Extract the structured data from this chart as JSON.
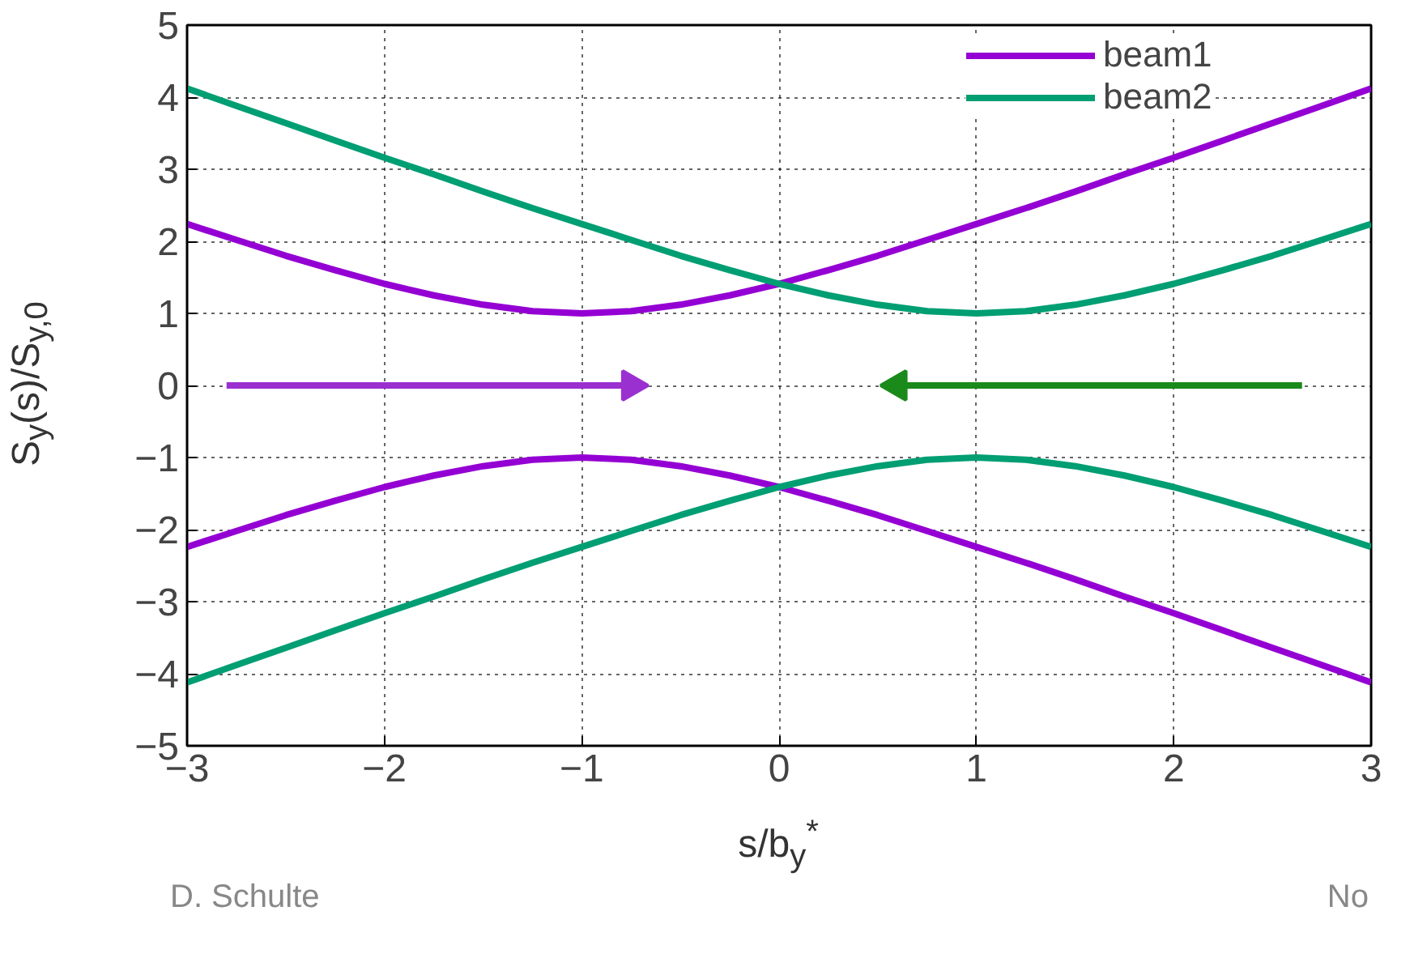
{
  "chart_data": {
    "type": "line",
    "xlabel": "s/b$_{y}$$^{*}$",
    "ylabel": "S$_{y}$(s)/S$_{y,0}$",
    "series": [
      {
        "name": "beam1",
        "color": "#9400d3",
        "x": [
          -3,
          -2.75,
          -2.5,
          -2.25,
          -2,
          -1.75,
          -1.5,
          -1.25,
          -1,
          -0.75,
          -0.5,
          -0.25,
          0,
          0.25,
          0.5,
          0.75,
          1,
          1.25,
          1.5,
          1.75,
          2,
          2.25,
          2.5,
          2.75,
          3,
          null,
          -3,
          -2.75,
          -2.5,
          -2.25,
          -2,
          -1.75,
          -1.5,
          -1.25,
          -1,
          -0.75,
          -0.5,
          -0.25,
          0,
          0.25,
          0.5,
          0.75,
          1,
          1.25,
          1.5,
          1.75,
          2,
          2.25,
          2.5,
          2.75,
          3
        ],
        "values": [
          2.24,
          2.02,
          1.8,
          1.6,
          1.41,
          1.25,
          1.12,
          1.03,
          1.0,
          1.03,
          1.12,
          1.25,
          1.41,
          1.6,
          1.8,
          2.02,
          2.24,
          2.46,
          2.69,
          2.93,
          3.16,
          3.4,
          3.64,
          3.88,
          4.12,
          null,
          -2.24,
          -2.02,
          -1.8,
          -1.6,
          -1.41,
          -1.25,
          -1.12,
          -1.03,
          -1.0,
          -1.03,
          -1.12,
          -1.25,
          -1.41,
          -1.6,
          -1.8,
          -2.02,
          -2.24,
          -2.46,
          -2.69,
          -2.93,
          -3.16,
          -3.4,
          -3.64,
          -3.88,
          -4.12
        ]
      },
      {
        "name": "beam2",
        "color": "#009e73",
        "x": [
          -3,
          -2.75,
          -2.5,
          -2.25,
          -2,
          -1.75,
          -1.5,
          -1.25,
          -1,
          -0.75,
          -0.5,
          -0.25,
          0,
          0.25,
          0.5,
          0.75,
          1,
          1.25,
          1.5,
          1.75,
          2,
          2.25,
          2.5,
          2.75,
          3,
          null,
          -3,
          -2.75,
          -2.5,
          -2.25,
          -2,
          -1.75,
          -1.5,
          -1.25,
          -1,
          -0.75,
          -0.5,
          -0.25,
          0,
          0.25,
          0.5,
          0.75,
          1,
          1.25,
          1.5,
          1.75,
          2,
          2.25,
          2.5,
          2.75,
          3
        ],
        "values": [
          4.12,
          3.88,
          3.64,
          3.4,
          3.16,
          2.93,
          2.69,
          2.46,
          2.24,
          2.02,
          1.8,
          1.6,
          1.41,
          1.25,
          1.12,
          1.03,
          1.0,
          1.03,
          1.12,
          1.25,
          1.41,
          1.6,
          1.8,
          2.02,
          2.24,
          null,
          -4.12,
          -3.88,
          -3.64,
          -3.4,
          -3.16,
          -2.93,
          -2.69,
          -2.46,
          -2.24,
          -2.02,
          -1.8,
          -1.6,
          -1.41,
          -1.25,
          -1.12,
          -1.03,
          -1.0,
          -1.03,
          -1.12,
          -1.25,
          -1.41,
          -1.6,
          -1.8,
          -2.02,
          -2.24
        ]
      },
      {
        "color": "#9b30d0",
        "x": [
          -2.8,
          -0.75
        ],
        "values": [
          0,
          0
        ],
        "marker": "triangle"
      },
      {
        "color": "#1a8a1a",
        "x": [
          2.65,
          0.6
        ],
        "values": [
          0,
          0
        ],
        "marker": "triangle"
      }
    ],
    "xlim": [
      -3,
      3
    ],
    "ylim": [
      -5,
      5
    ],
    "xticks": [
      -3,
      -2,
      -1,
      0,
      1,
      2,
      3
    ],
    "yticks": [
      -5,
      -4,
      -3,
      -2,
      -1,
      0,
      1,
      2,
      3,
      4,
      5
    ],
    "grid": true,
    "legend": "top right",
    "line_style": "solid",
    "annotations": [
      "D. Schulte",
      "No"
    ]
  }
}
